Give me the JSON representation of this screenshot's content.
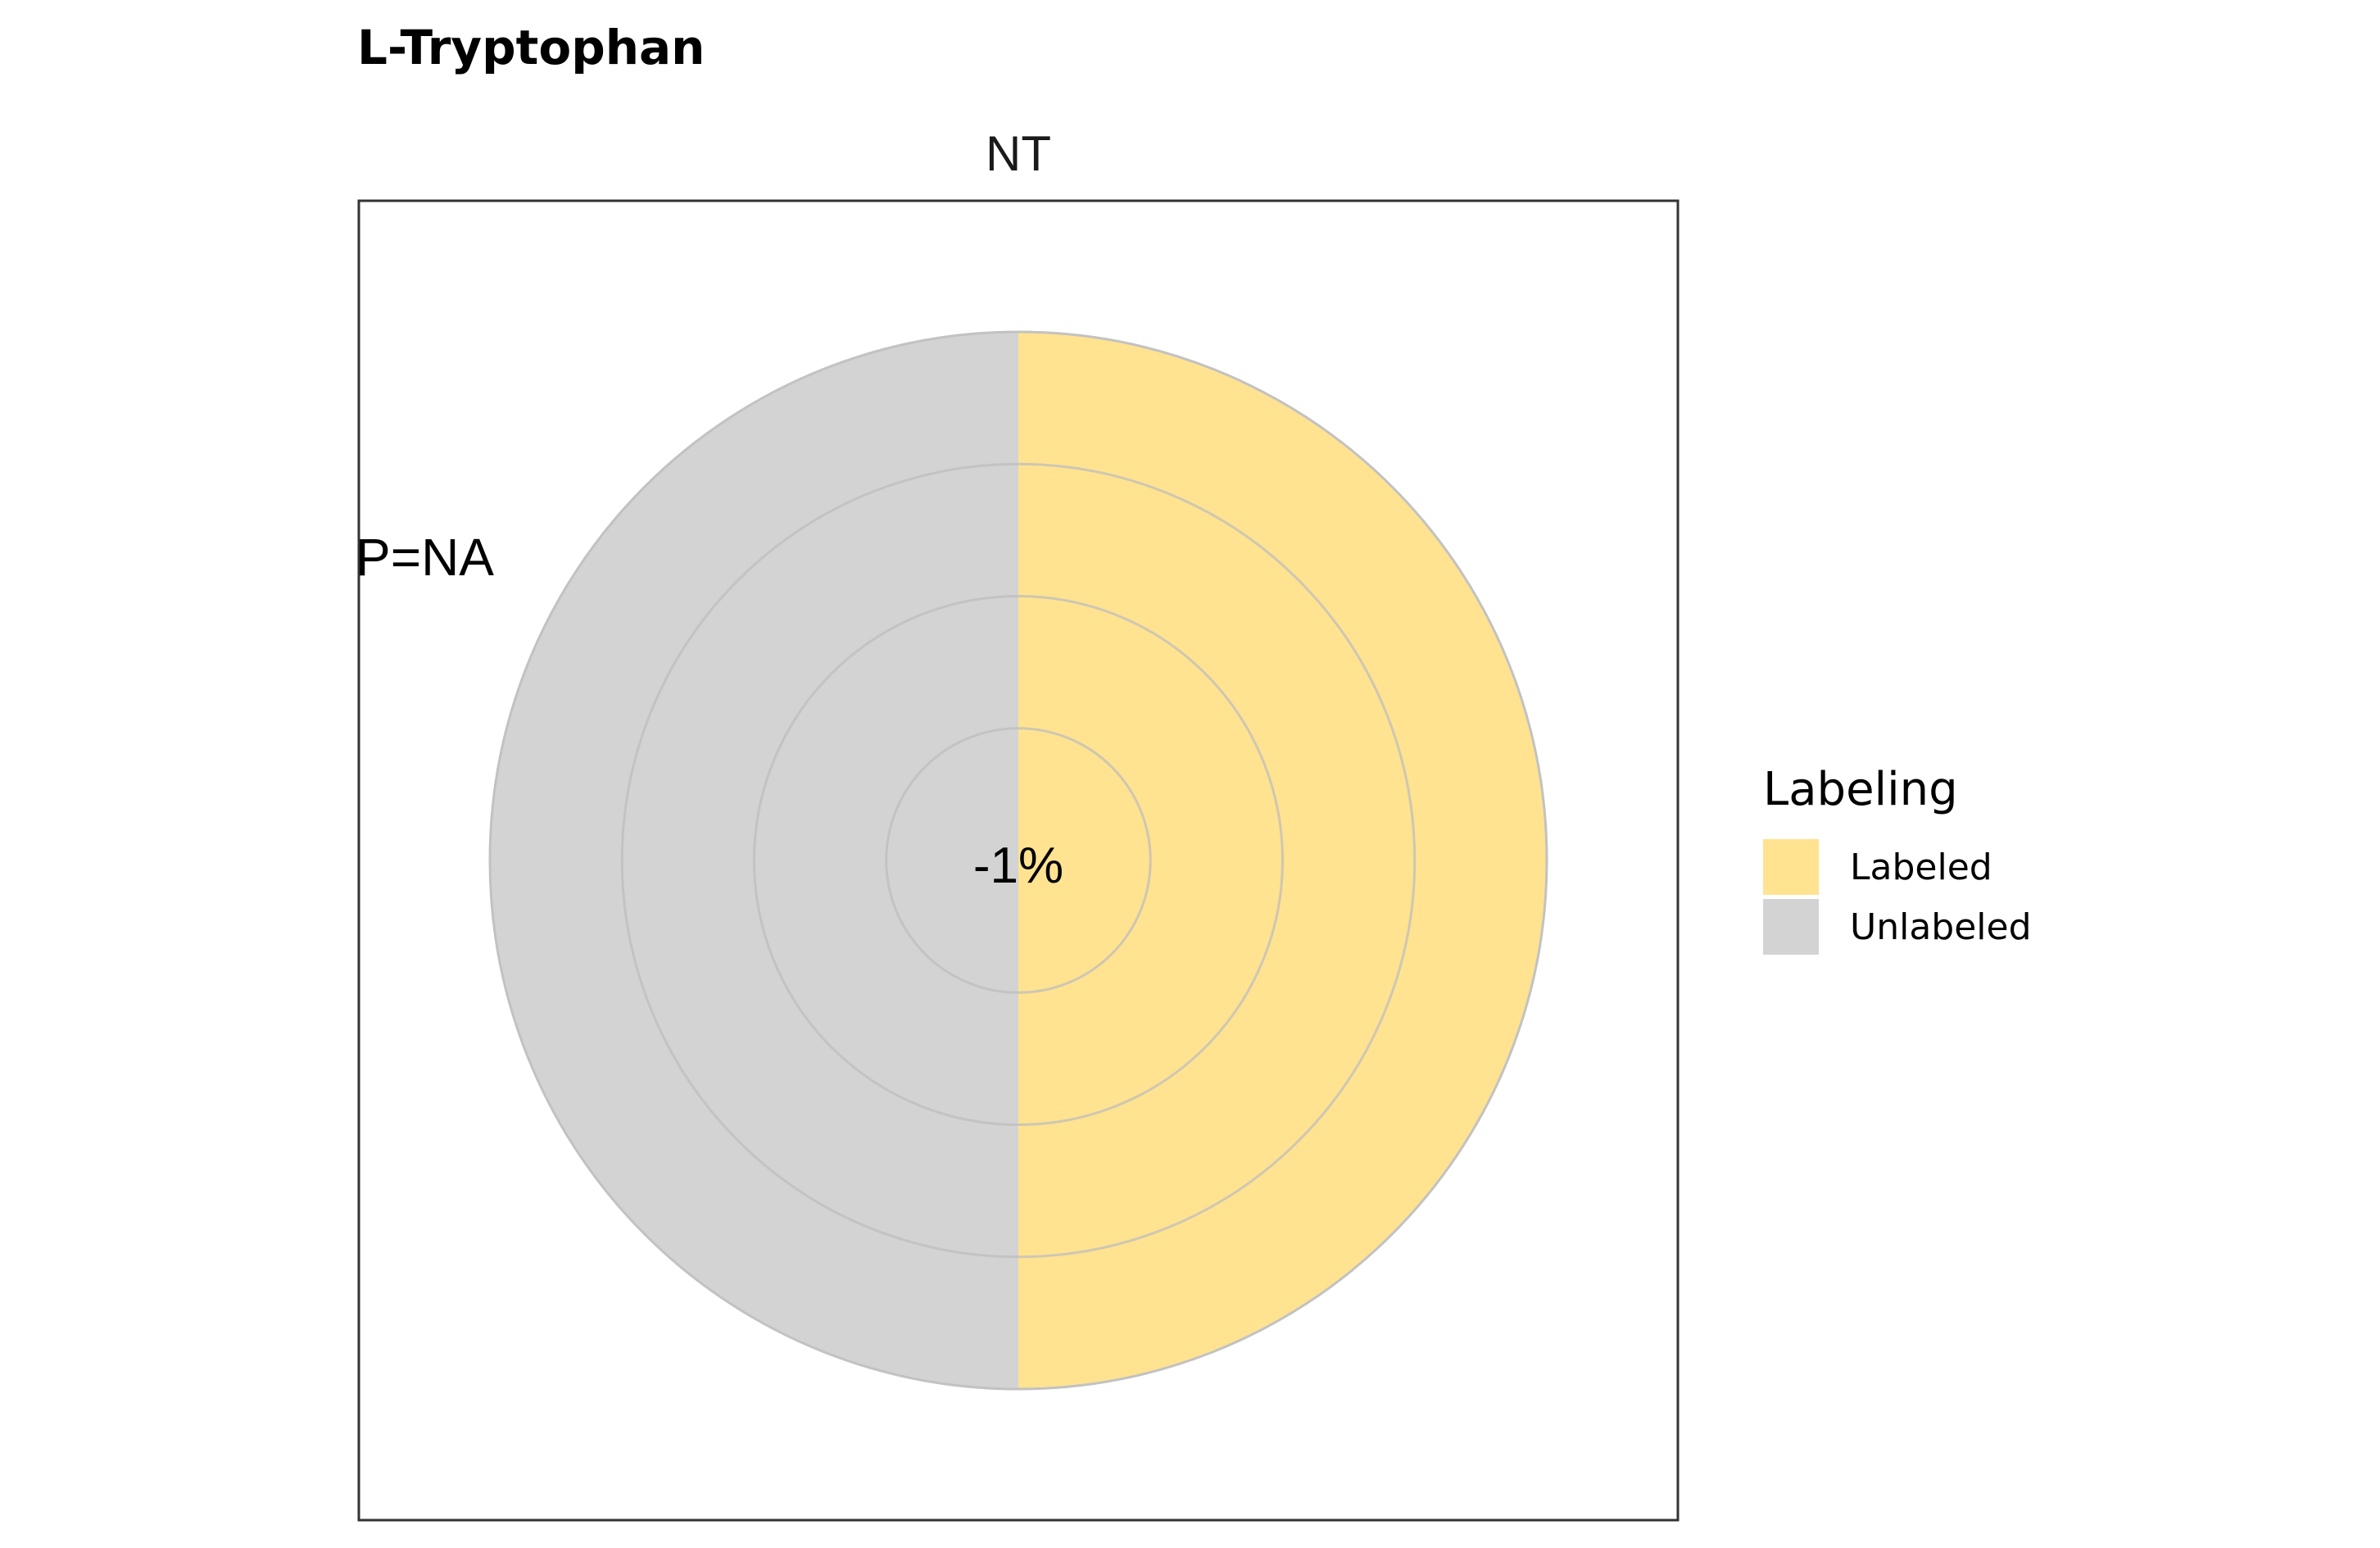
{
  "chart_data": {
    "type": "pie",
    "title": "L-Tryptophan",
    "facet_label": "NT",
    "annotation": "P=NA",
    "center_label": "-1%",
    "ring_count": 4,
    "slices": [
      {
        "label": "Labeled",
        "value": 50,
        "color": "#FFE391"
      },
      {
        "label": "Unlabeled",
        "value": 50,
        "color": "#D3D3D3"
      }
    ],
    "legend": {
      "title": "Labeling",
      "placement": "right",
      "items": [
        {
          "label": "Labeled",
          "color": "#FFE391"
        },
        {
          "label": "Unlabeled",
          "color": "#D3D3D3"
        }
      ]
    }
  }
}
